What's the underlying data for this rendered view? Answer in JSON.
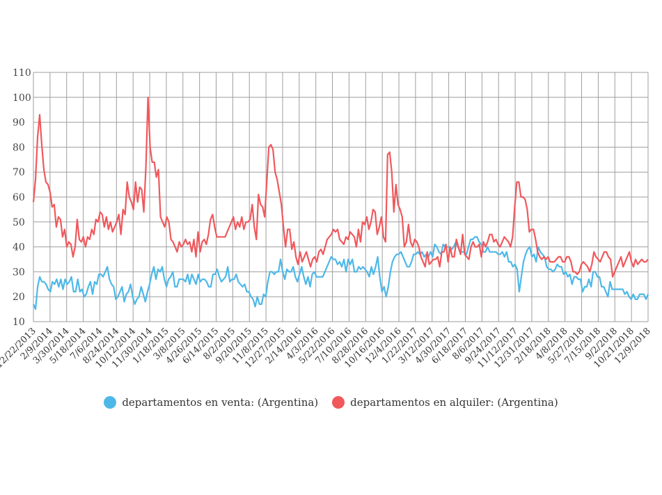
{
  "chart_data": {
    "type": "line",
    "ylim": [
      10,
      110
    ],
    "yticks": [
      10,
      20,
      30,
      40,
      50,
      60,
      70,
      80,
      90,
      100,
      110
    ],
    "x_labels": [
      "12/22/2013",
      "2/9/2014",
      "3/30/2014",
      "5/18/2014",
      "7/6/2014",
      "8/24/2014",
      "10/12/2014",
      "11/30/2014",
      "1/18/2015",
      "3/8/2015",
      "4/26/2015",
      "6/14/2015",
      "8/2/2015",
      "9/20/2015",
      "11/8/2015",
      "12/27/2015",
      "2/14/2016",
      "4/3/2016",
      "5/22/2016",
      "7/10/2016",
      "8/28/2016",
      "10/16/2016",
      "12/4/2016",
      "1/22/2017",
      "3/12/2017",
      "4/30/2017",
      "6/18/2017",
      "8/6/2017",
      "9/24/2017",
      "11/12/2017",
      "12/31/2017",
      "2/18/2018",
      "4/8/2018",
      "5/27/2018",
      "7/15/2018",
      "9/2/2018",
      "10/21/2018",
      "12/9/2018"
    ],
    "series": [
      {
        "name": "departamentos en venta: (Argentina)",
        "color": "#4db8e8",
        "values": [
          17,
          15,
          24,
          28,
          26,
          26,
          25,
          23,
          22,
          26,
          25,
          27,
          24,
          27,
          23,
          27,
          25,
          26,
          28,
          22,
          22,
          27,
          22,
          23,
          20,
          21,
          24,
          26,
          21,
          26,
          25,
          29,
          29,
          28,
          30,
          32,
          27,
          25,
          24,
          19,
          20,
          22,
          24,
          18,
          21,
          22,
          25,
          20,
          17,
          19,
          20,
          24,
          21,
          18,
          22,
          25,
          29,
          32,
          27,
          31,
          30,
          32,
          27,
          24,
          27,
          28,
          30,
          24,
          24,
          27,
          27,
          27,
          26,
          29,
          25,
          29,
          27,
          25,
          29,
          26,
          27,
          27,
          26,
          24,
          24,
          29,
          29,
          31,
          28,
          26,
          27,
          28,
          32,
          26,
          27,
          27,
          29,
          26,
          25,
          24,
          25,
          22,
          22,
          20,
          19,
          16,
          20,
          17,
          17,
          21,
          20,
          26,
          30,
          30,
          29,
          30,
          30,
          35,
          30,
          27,
          31,
          30,
          30,
          32,
          28,
          26,
          29,
          32,
          28,
          25,
          28,
          24,
          29,
          30,
          28,
          28,
          28,
          28,
          30,
          32,
          34,
          36,
          35,
          35,
          33,
          34,
          32,
          35,
          30,
          35,
          33,
          35,
          30,
          30,
          32,
          31,
          32,
          31,
          30,
          28,
          32,
          29,
          32,
          36,
          28,
          22,
          24,
          20,
          24,
          30,
          34,
          36,
          37,
          37,
          38,
          36,
          34,
          32,
          32,
          34,
          37,
          37,
          38,
          37,
          38,
          36,
          37,
          36,
          38,
          36,
          41,
          40,
          38,
          37,
          41,
          40,
          40,
          40,
          39,
          40,
          42,
          40,
          38,
          38,
          38,
          37,
          40,
          43,
          43,
          44,
          44,
          42,
          41,
          38,
          38,
          40,
          38,
          38,
          38,
          38,
          37,
          37,
          38,
          36,
          38,
          34,
          34,
          32,
          33,
          31,
          22,
          28,
          34,
          37,
          39,
          40,
          36,
          37,
          34,
          40,
          38,
          37,
          36,
          32,
          31,
          31,
          30,
          31,
          33,
          32,
          32,
          29,
          30,
          28,
          29,
          25,
          28,
          28,
          27,
          27,
          22,
          24,
          24,
          27,
          24,
          30,
          30,
          28,
          28,
          24,
          24,
          22,
          20,
          26,
          23,
          23,
          23,
          23,
          23,
          23,
          21,
          22,
          20,
          19,
          21,
          19,
          19,
          21,
          21,
          21,
          19,
          21
        ]
      },
      {
        "name": "departamentos en alquiler: (Argentina)",
        "color": "#f0585c",
        "values": [
          58,
          67,
          84,
          93,
          81,
          71,
          66,
          65,
          62,
          56,
          57,
          48,
          52,
          51,
          44,
          47,
          40,
          42,
          41,
          36,
          40,
          51,
          43,
          42,
          44,
          40,
          44,
          43,
          47,
          45,
          51,
          50,
          54,
          53,
          48,
          52,
          47,
          50,
          46,
          48,
          50,
          53,
          45,
          55,
          53,
          66,
          60,
          58,
          55,
          66,
          58,
          64,
          63,
          54,
          72,
          100,
          80,
          74,
          74,
          68,
          71,
          52,
          50,
          48,
          52,
          50,
          43,
          42,
          40,
          38,
          42,
          40,
          41,
          43,
          41,
          42,
          38,
          43,
          36,
          46,
          38,
          42,
          43,
          41,
          45,
          51,
          53,
          48,
          44,
          44,
          44,
          44,
          44,
          46,
          48,
          50,
          52,
          47,
          50,
          48,
          52,
          47,
          50,
          50,
          51,
          57,
          48,
          43,
          61,
          57,
          56,
          52,
          66,
          80,
          81,
          79,
          70,
          67,
          62,
          57,
          48,
          40,
          47,
          47,
          39,
          42,
          36,
          33,
          38,
          34,
          36,
          38,
          35,
          32,
          35,
          36,
          34,
          38,
          39,
          37,
          40,
          43,
          44,
          45,
          47,
          46,
          47,
          43,
          42,
          41,
          44,
          43,
          46,
          45,
          44,
          40,
          47,
          42,
          50,
          49,
          52,
          47,
          50,
          55,
          54,
          45,
          48,
          52,
          44,
          42,
          77,
          78,
          70,
          54,
          65,
          57,
          55,
          52,
          40,
          42,
          49,
          42,
          40,
          43,
          42,
          40,
          36,
          34,
          32,
          38,
          33,
          34,
          35,
          35,
          36,
          32,
          38,
          38,
          41,
          34,
          40,
          36,
          36,
          43,
          40,
          37,
          45,
          37,
          36,
          35,
          40,
          42,
          40,
          40,
          41,
          36,
          42,
          40,
          42,
          45,
          45,
          42,
          43,
          41,
          40,
          42,
          44,
          43,
          42,
          40,
          44,
          56,
          66,
          66,
          60,
          60,
          59,
          55,
          46,
          47,
          47,
          43,
          38,
          36,
          35,
          36,
          35,
          36,
          34,
          34,
          34,
          35,
          36,
          36,
          34,
          34,
          36,
          36,
          34,
          30,
          30,
          29,
          30,
          33,
          34,
          33,
          32,
          30,
          33,
          38,
          36,
          35,
          34,
          36,
          38,
          38,
          36,
          35,
          28,
          30,
          32,
          34,
          36,
          32,
          34,
          36,
          38,
          34,
          32,
          35,
          33,
          34,
          35,
          34,
          34,
          35
        ]
      }
    ]
  }
}
